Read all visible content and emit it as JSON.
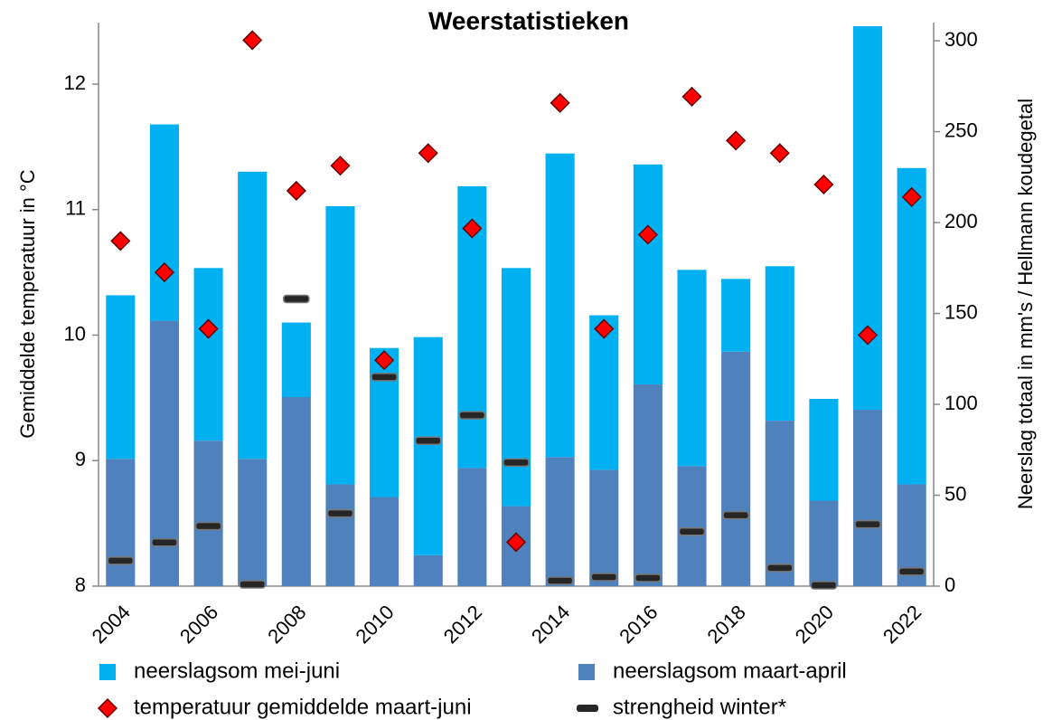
{
  "chart_data": {
    "type": "bar",
    "title": "Weerstatistieken",
    "stacked": true,
    "ylabel": "Gemiddelde temperatuur in °C",
    "y2label": "Neerslag totaal in mm's / Hellmann koudegetal",
    "categories": [
      "2004",
      null,
      "2006",
      null,
      "2008",
      null,
      "2010",
      null,
      "2012",
      null,
      "2014",
      null,
      "2016",
      null,
      "2018",
      null,
      "2020",
      null,
      "2022"
    ],
    "ylim": [
      8,
      12.49
    ],
    "yticks": [
      8,
      9,
      10,
      11,
      12
    ],
    "y2lim": [
      0,
      310
    ],
    "y2ticks": [
      0,
      50,
      100,
      150,
      200,
      250,
      300
    ],
    "series": [
      {
        "name": "neerslagsom mei-juni",
        "type": "bar",
        "axis": "y2",
        "color": "#00b0f0",
        "values": [
          90,
          108,
          95,
          158,
          41,
          153,
          82,
          120,
          155,
          131,
          167,
          85,
          121,
          108,
          40,
          85,
          56,
          211,
          174
        ]
      },
      {
        "name": "neerslagsom maart-april",
        "type": "bar",
        "axis": "y2",
        "color": "#4f81bd",
        "values": [
          70,
          146,
          80,
          70,
          104,
          56,
          49,
          17,
          65,
          44,
          71,
          64,
          111,
          66,
          129,
          91,
          47,
          97,
          56
        ]
      },
      {
        "name": "temperatuur gemiddelde maart-juni",
        "type": "scatter",
        "marker": "diamond",
        "axis": "y",
        "color": "#ff0000",
        "values": [
          10.75,
          10.5,
          10.05,
          12.35,
          11.15,
          11.35,
          9.8,
          11.45,
          10.85,
          8.35,
          11.85,
          10.05,
          10.8,
          11.9,
          11.55,
          11.45,
          11.2,
          10.0,
          11.1
        ]
      },
      {
        "name": "strengheid winter*",
        "type": "scatter",
        "marker": "dash",
        "axis": "y2",
        "color": "#262626",
        "values": [
          14,
          24,
          33,
          1,
          158,
          40,
          115,
          80,
          94,
          68,
          3,
          5,
          4.5,
          30,
          39,
          10,
          0.5,
          34,
          8
        ]
      }
    ]
  }
}
